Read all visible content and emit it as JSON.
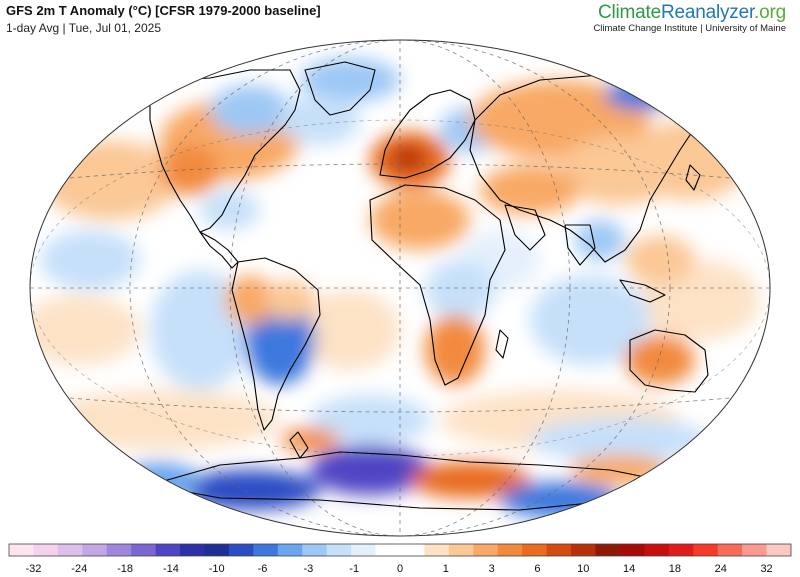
{
  "header": {
    "title": "GFS 2m T Anomaly (°C) [CFSR 1979-2000 baseline]",
    "subtitle": "1-day Avg | Tue, Jul 01, 2025"
  },
  "brand": {
    "name_part1": "Climate",
    "name_part2": "Reanalyzer",
    "name_part3": ".org",
    "tagline": "Climate Change Institute | University of Maine"
  },
  "colors": {
    "ocean_neutral": "#ffffff",
    "coastline": "#000000",
    "graticule": "#666666"
  },
  "colorbar": {
    "boundaries": [
      -32,
      -24,
      -18,
      -14,
      -10,
      -6,
      -3,
      -1,
      0,
      1,
      3,
      6,
      10,
      14,
      18,
      24,
      32
    ],
    "tick_labels": [
      "-32",
      "-24",
      "-18",
      "-14",
      "-10",
      "-6",
      "-3",
      "-1",
      "0",
      "1",
      "3",
      "6",
      "10",
      "14",
      "18",
      "24",
      "32"
    ],
    "colors": [
      "#fde6f0",
      "#f4d2ec",
      "#dcc0ea",
      "#c3a6e6",
      "#9f86dd",
      "#7b66d3",
      "#4f45c4",
      "#2b2fa8",
      "#1c2f95",
      "#2b4cc4",
      "#3e78de",
      "#6aa5ee",
      "#9dc8f5",
      "#c6e0fa",
      "#e4f0fc",
      "#ffffff",
      "#ffffff",
      "#fde2c6",
      "#fbc896",
      "#f8a965",
      "#f28a3d",
      "#e86b1f",
      "#d44b10",
      "#b8300a",
      "#8e1a06",
      "#a80a0a",
      "#c80f0f",
      "#e01b1b",
      "#f53a2a",
      "#f86a5a",
      "#fa9a90",
      "#fcc8c0"
    ]
  }
}
